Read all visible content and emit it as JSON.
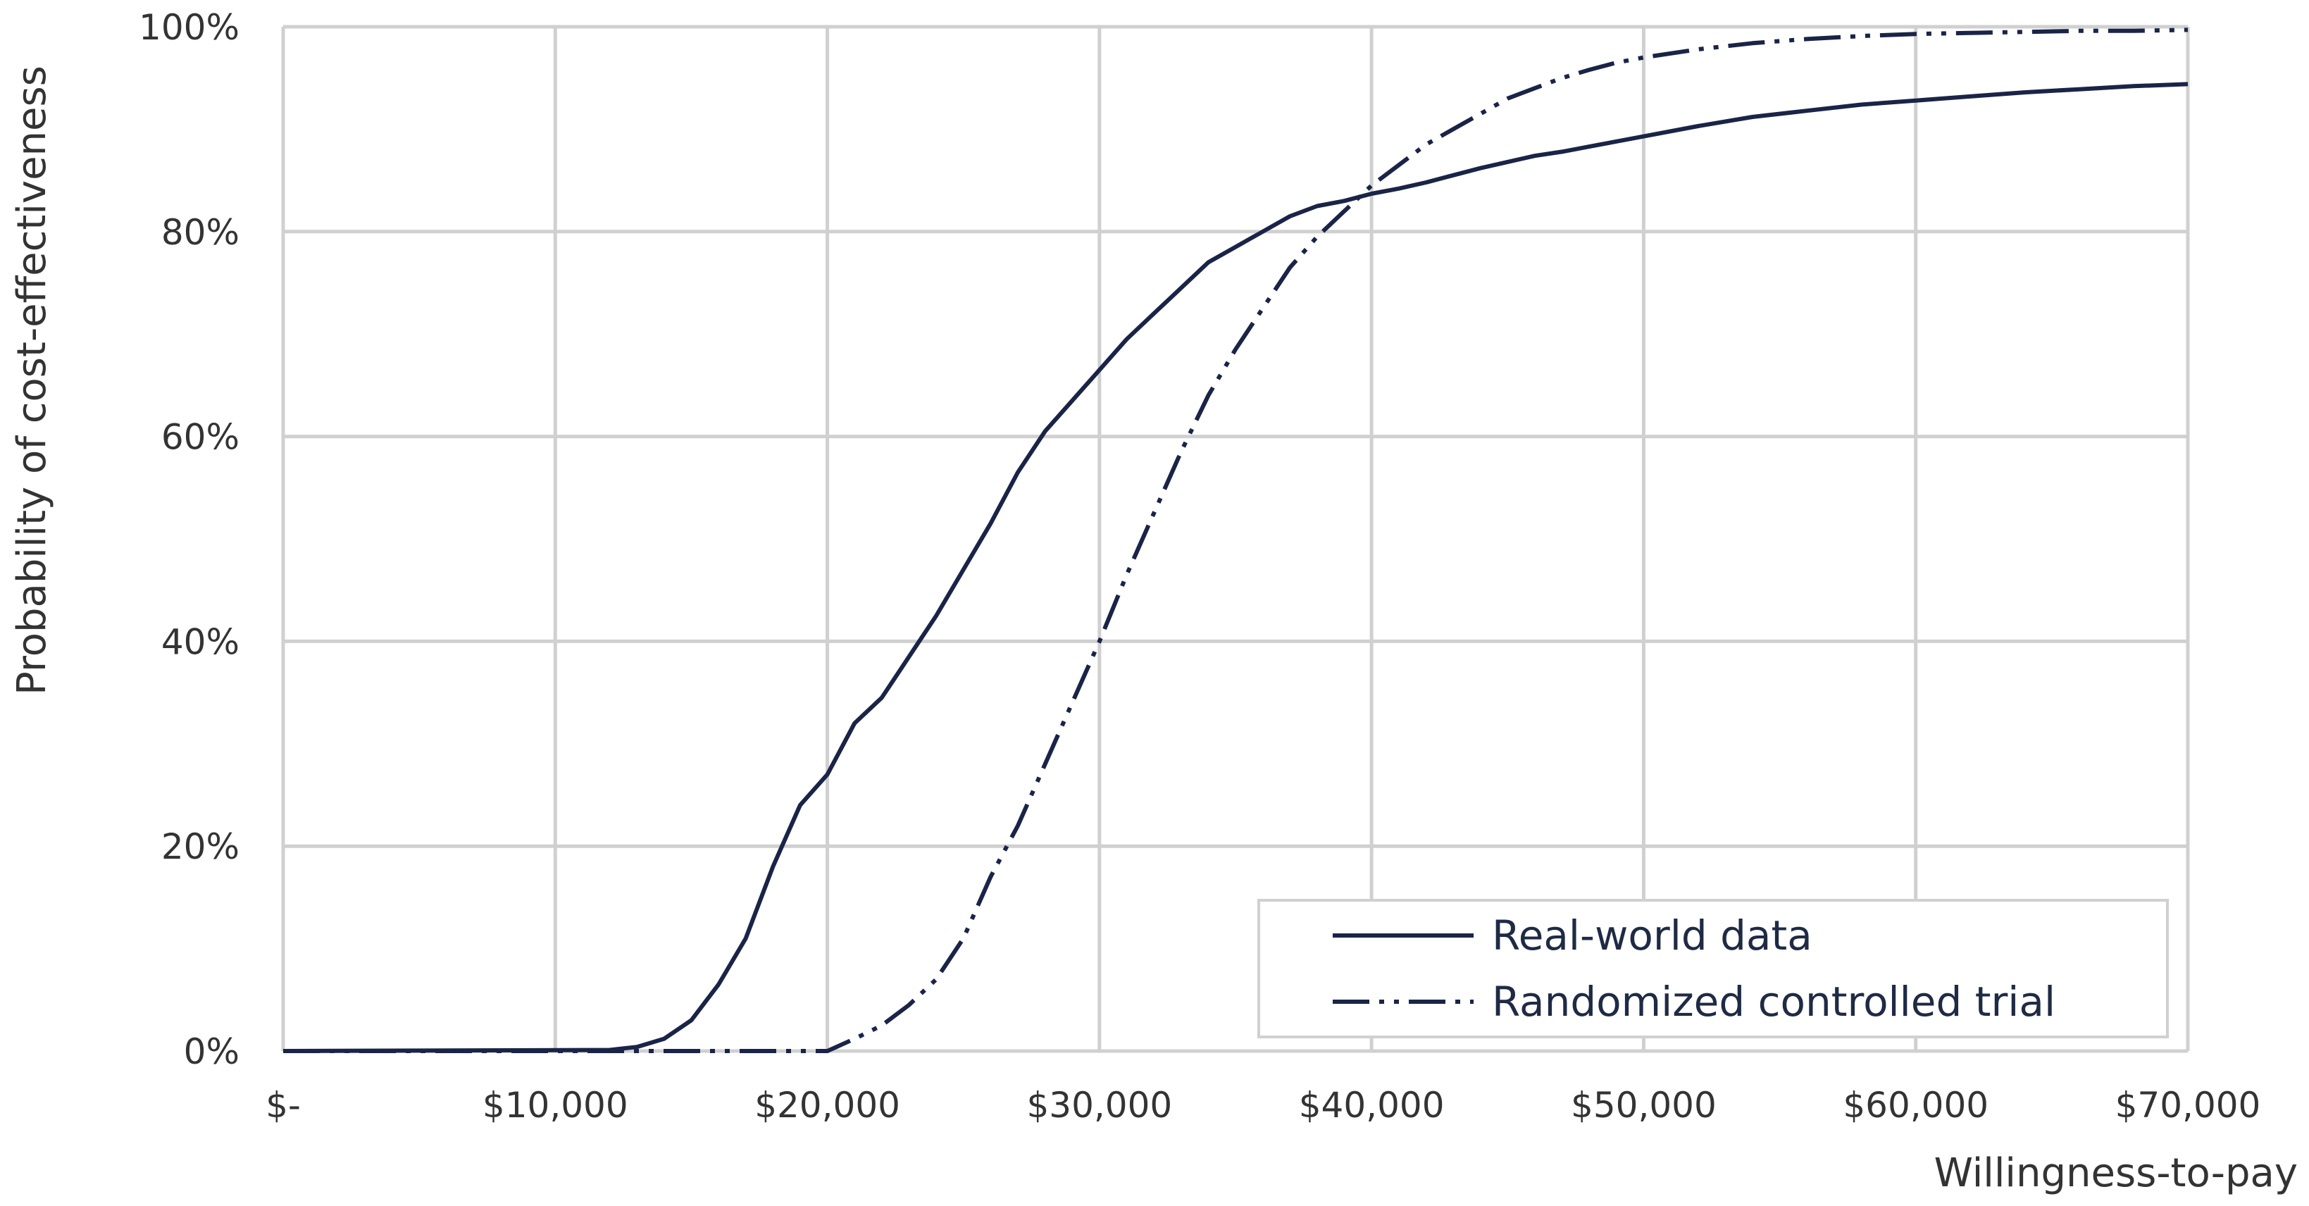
{
  "chart_data": {
    "type": "line",
    "xlabel": "Willingness-to-pay",
    "ylabel": "Probability of cost-effectiveness",
    "xlim": [
      0,
      70000
    ],
    "ylim": [
      0,
      1
    ],
    "grid": true,
    "legend_position": "bottom-right",
    "x_ticks": [
      {
        "value": 0,
        "label": "$-"
      },
      {
        "value": 10000,
        "label": "$10,000"
      },
      {
        "value": 20000,
        "label": "$20,000"
      },
      {
        "value": 30000,
        "label": "$30,000"
      },
      {
        "value": 40000,
        "label": "$40,000"
      },
      {
        "value": 50000,
        "label": "$50,000"
      },
      {
        "value": 60000,
        "label": "$60,000"
      },
      {
        "value": 70000,
        "label": "$70,000"
      }
    ],
    "y_ticks": [
      {
        "value": 0,
        "label": "0%"
      },
      {
        "value": 0.2,
        "label": "20%"
      },
      {
        "value": 0.4,
        "label": "40%"
      },
      {
        "value": 0.6,
        "label": "60%"
      },
      {
        "value": 0.8,
        "label": "80%"
      },
      {
        "value": 1,
        "label": "100%"
      }
    ],
    "series": [
      {
        "name": "Real-world data",
        "style": "solid",
        "color": "#1a2447",
        "points": [
          [
            0,
            0
          ],
          [
            12000,
            0.001
          ],
          [
            13000,
            0.004
          ],
          [
            14000,
            0.012
          ],
          [
            15000,
            0.03
          ],
          [
            16000,
            0.065
          ],
          [
            17000,
            0.11
          ],
          [
            18000,
            0.18
          ],
          [
            19000,
            0.24
          ],
          [
            20000,
            0.27
          ],
          [
            21000,
            0.32
          ],
          [
            22000,
            0.345
          ],
          [
            23000,
            0.385
          ],
          [
            24000,
            0.425
          ],
          [
            25000,
            0.47
          ],
          [
            26000,
            0.515
          ],
          [
            27000,
            0.565
          ],
          [
            28000,
            0.605
          ],
          [
            29000,
            0.635
          ],
          [
            30000,
            0.665
          ],
          [
            31000,
            0.695
          ],
          [
            32000,
            0.72
          ],
          [
            33000,
            0.745
          ],
          [
            34000,
            0.77
          ],
          [
            35000,
            0.785
          ],
          [
            36000,
            0.8
          ],
          [
            37000,
            0.815
          ],
          [
            38000,
            0.825
          ],
          [
            39000,
            0.83
          ],
          [
            40000,
            0.837
          ],
          [
            41000,
            0.842
          ],
          [
            42000,
            0.848
          ],
          [
            43000,
            0.855
          ],
          [
            44000,
            0.862
          ],
          [
            45000,
            0.868
          ],
          [
            46000,
            0.874
          ],
          [
            47000,
            0.878
          ],
          [
            48000,
            0.883
          ],
          [
            49000,
            0.888
          ],
          [
            50000,
            0.893
          ],
          [
            52000,
            0.903
          ],
          [
            54000,
            0.912
          ],
          [
            56000,
            0.918
          ],
          [
            58000,
            0.924
          ],
          [
            60000,
            0.928
          ],
          [
            62000,
            0.932
          ],
          [
            64000,
            0.936
          ],
          [
            66000,
            0.939
          ],
          [
            68000,
            0.942
          ],
          [
            70000,
            0.944
          ]
        ]
      },
      {
        "name": "Randomized controlled trial",
        "style": "dash-dot-dot",
        "color": "#1a2447",
        "points": [
          [
            0,
            0
          ],
          [
            20000,
            0
          ],
          [
            21000,
            0.012
          ],
          [
            22000,
            0.025
          ],
          [
            23000,
            0.045
          ],
          [
            24000,
            0.07
          ],
          [
            25000,
            0.11
          ],
          [
            26000,
            0.17
          ],
          [
            27000,
            0.22
          ],
          [
            28000,
            0.28
          ],
          [
            29000,
            0.34
          ],
          [
            30000,
            0.4
          ],
          [
            31000,
            0.465
          ],
          [
            32000,
            0.525
          ],
          [
            33000,
            0.585
          ],
          [
            34000,
            0.64
          ],
          [
            35000,
            0.685
          ],
          [
            36000,
            0.725
          ],
          [
            37000,
            0.765
          ],
          [
            38000,
            0.795
          ],
          [
            39000,
            0.82
          ],
          [
            40000,
            0.845
          ],
          [
            41000,
            0.865
          ],
          [
            42000,
            0.885
          ],
          [
            43000,
            0.9
          ],
          [
            44000,
            0.915
          ],
          [
            45000,
            0.93
          ],
          [
            46000,
            0.94
          ],
          [
            47000,
            0.95
          ],
          [
            48000,
            0.958
          ],
          [
            49000,
            0.965
          ],
          [
            50000,
            0.97
          ],
          [
            52000,
            0.978
          ],
          [
            54000,
            0.984
          ],
          [
            56000,
            0.988
          ],
          [
            58000,
            0.991
          ],
          [
            60000,
            0.993
          ],
          [
            62000,
            0.994
          ],
          [
            64000,
            0.995
          ],
          [
            66000,
            0.996
          ],
          [
            68000,
            0.996
          ],
          [
            70000,
            0.997
          ]
        ]
      }
    ]
  }
}
